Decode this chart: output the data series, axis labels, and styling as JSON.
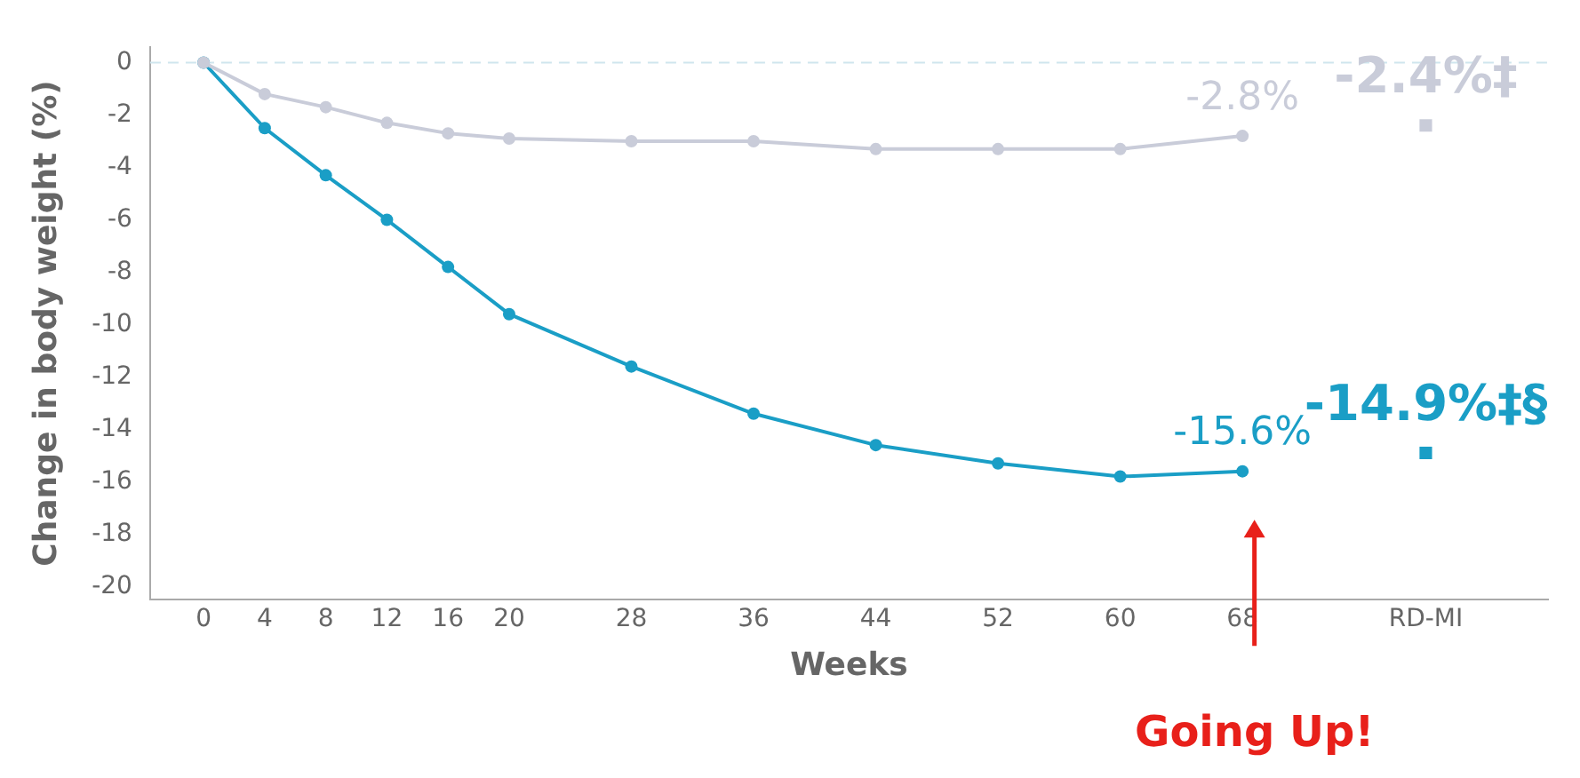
{
  "chart_data": {
    "type": "line",
    "xlabel": "Weeks",
    "ylabel": "Change in body weight (%)",
    "xlim": [
      -3.5,
      88
    ],
    "xticks": [
      0,
      4,
      8,
      12,
      16,
      20,
      28,
      36,
      44,
      52,
      60,
      68,
      {
        "value": 80,
        "label": "RD-MI"
      }
    ],
    "ylim": [
      -20.5,
      0.6
    ],
    "yticks": [
      0,
      -2,
      -4,
      -6,
      -8,
      -10,
      -12,
      -14,
      -16,
      -18,
      -20
    ],
    "grid": false,
    "legend": false,
    "marker": "circle",
    "line_style": "solid",
    "ref_lines": [
      {
        "axis": "y",
        "value": 0,
        "color": "#cfe6ee",
        "line_style": "dashed"
      }
    ],
    "series": [
      {
        "color": "#c9ccd9",
        "x": [
          0,
          4,
          8,
          12,
          16,
          20,
          28,
          36,
          44,
          52,
          60,
          68
        ],
        "values": [
          0,
          -1.2,
          -1.7,
          -2.3,
          -2.7,
          -2.9,
          -3.0,
          -3.0,
          -3.3,
          -3.3,
          -3.3,
          -2.8
        ],
        "value_labels": [
          null,
          null,
          null,
          null,
          null,
          null,
          null,
          null,
          null,
          null,
          null,
          "-2.8%"
        ]
      },
      {
        "color": "#1a9ec6",
        "x": [
          0,
          4,
          8,
          12,
          16,
          20,
          28,
          36,
          44,
          52,
          60,
          68
        ],
        "values": [
          0,
          -2.5,
          -4.3,
          -6.0,
          -7.8,
          -9.6,
          -11.6,
          -13.4,
          -14.6,
          -15.3,
          -15.8,
          -15.6
        ],
        "value_labels": [
          null,
          null,
          null,
          null,
          null,
          null,
          null,
          null,
          null,
          null,
          null,
          "-15.6%"
        ]
      },
      {
        "type": "scatter",
        "marker": "square",
        "color": "#c9ccd9",
        "x": [
          80
        ],
        "values": [
          -2.4
        ],
        "value_labels": [
          "-2.4%‡"
        ]
      },
      {
        "type": "scatter",
        "marker": "square",
        "color": "#1a9ec6",
        "x": [
          80
        ],
        "values": [
          -14.9
        ],
        "value_labels": [
          "-14.9%‡§"
        ]
      }
    ],
    "annotations": [
      "Going Up!"
    ]
  }
}
